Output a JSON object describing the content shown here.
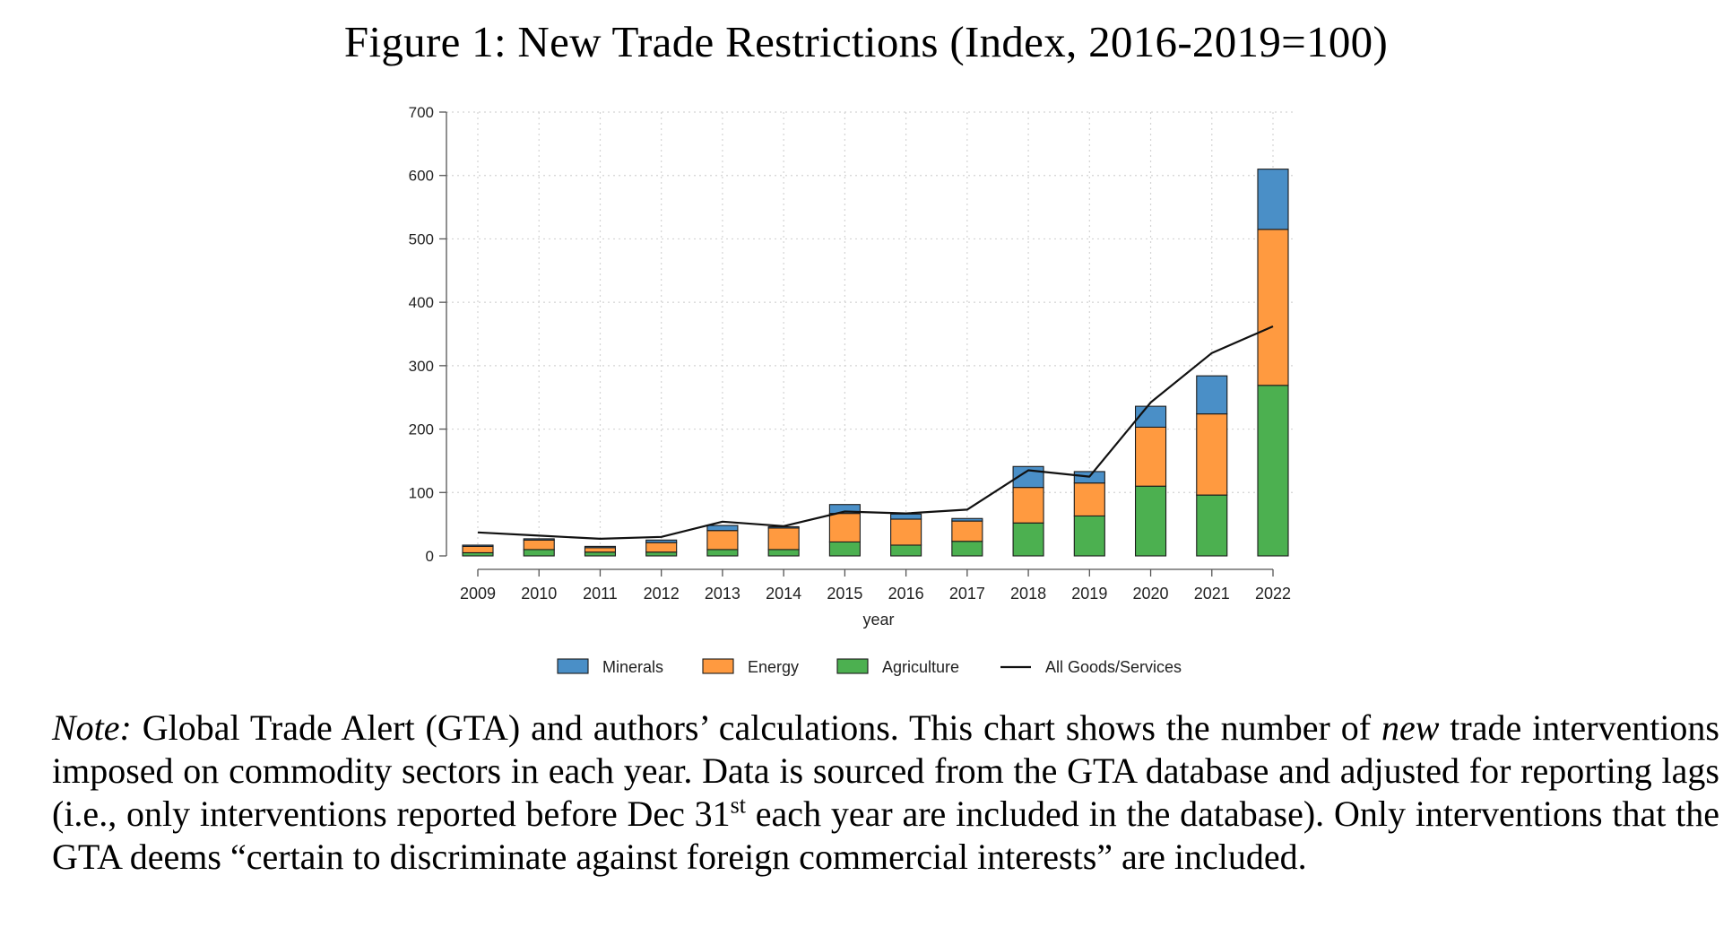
{
  "figure": {
    "title": "Figure 1: New Trade Restrictions (Index, 2016-2019=100)"
  },
  "chart_data": {
    "type": "bar",
    "stacked": true,
    "x": [
      2009,
      2010,
      2011,
      2012,
      2013,
      2014,
      2015,
      2016,
      2017,
      2018,
      2019,
      2020,
      2021,
      2022
    ],
    "xlabel": "year",
    "ylabel": "",
    "ylim": [
      0,
      700
    ],
    "yticks": [
      0,
      100,
      200,
      300,
      400,
      500,
      600,
      700
    ],
    "grid": true,
    "legend_position": "bottom",
    "series": [
      {
        "name": "Agriculture",
        "type": "bar",
        "color": "#4cb050",
        "values": [
          5,
          10,
          6,
          6,
          10,
          10,
          22,
          17,
          23,
          52,
          63,
          110,
          96,
          269
        ]
      },
      {
        "name": "Energy",
        "type": "bar",
        "color": "#ff9a40",
        "values": [
          10,
          15,
          7,
          15,
          30,
          34,
          45,
          41,
          32,
          56,
          52,
          93,
          128,
          246
        ]
      },
      {
        "name": "Minerals",
        "type": "bar",
        "color": "#4a8fc7",
        "values": [
          2,
          2,
          2,
          4,
          8,
          2,
          14,
          8,
          4,
          33,
          18,
          33,
          60,
          95
        ]
      },
      {
        "name": "All Goods/Services",
        "type": "line",
        "color": "#111111",
        "values": [
          37,
          32,
          27,
          30,
          54,
          47,
          70,
          67,
          73,
          135,
          125,
          242,
          320,
          362
        ]
      }
    ],
    "legend": [
      "Minerals",
      "Energy",
      "Agriculture",
      "All Goods/Services"
    ]
  },
  "note": {
    "lead": "Note:",
    "part1": " Global Trade Alert (GTA) and authors’ calculations. This chart shows the number of ",
    "emph": "new",
    "part2": " trade interventions imposed on commodity sectors in each year. Data is sourced from the GTA database and adjusted for reporting lags (i.e., only interventions reported before Dec 31",
    "sup": "st",
    "part3": " each year are included in the database). Only interventions that the GTA deems “certain to discriminate against foreign commercial interests” are included."
  }
}
